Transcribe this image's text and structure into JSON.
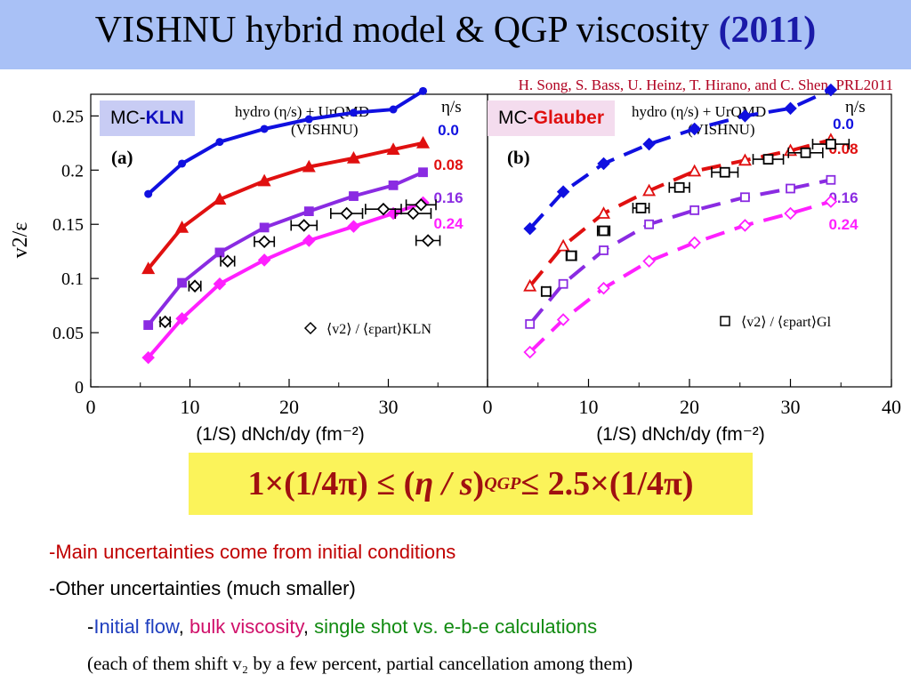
{
  "slide": {
    "title_text": "VISHNU hybrid model  &  QGP viscosity",
    "title_year": "(2011)",
    "citation": "H. Song, S. Bass, U. Heinz, T. Hirano, and  C. Shen, PRL2011",
    "badge_kln_prefix": "MC-",
    "badge_kln_name": "KLN",
    "badge_glauber_prefix": "MC-",
    "badge_glauber_name": "Glauber",
    "formula": {
      "left": "1×(1/4π) ≤ (",
      "eta_s": "η / s",
      "close": ")",
      "sub": "QGP",
      "right": " ≤ 2.5×(1/4π)"
    },
    "bullet1": "-Main uncertainties come from initial conditions",
    "bullet2": "-Other uncertainties (much smaller)",
    "bullet3_dash": "-",
    "bullet3_a": "Initial flow",
    "bullet3_sep1": ", ",
    "bullet3_b": "bulk viscosity",
    "bullet3_sep2": ", ",
    "bullet3_c": "single shot vs. e-b-e calculations",
    "bullet4": "(each of them shift v₂ by a few percent,  partial cancellation among them)",
    "colors": {
      "blue": "#1010e0",
      "red": "#e01010",
      "purple": "#8a2be2",
      "magenta": "#ff20ff",
      "title_bg": "#a9c1f6",
      "formula_bg": "#fbf35a"
    }
  },
  "chart_data": [
    {
      "type": "line",
      "panel_label": "(a)",
      "header": "hydro (η/s) + UrQMD",
      "header2": "(VISHNU)",
      "legend_title": "η/s",
      "data_legend": "⟨v2⟩ / ⟨εpart⟩KLN",
      "xlabel": "(1/S) dNch/dy (fm⁻²)",
      "ylabel": "v2/ε",
      "xlim": [
        0,
        40
      ],
      "ylim": [
        0,
        0.27
      ],
      "xticks": [
        "0",
        "10",
        "20",
        "30"
      ],
      "yticks": [
        "0",
        "0.05",
        "0.1",
        "0.15",
        "0.2",
        "0.25"
      ],
      "series": [
        {
          "name": "0.0",
          "color": "#1010e0",
          "marker": "star",
          "dashed": false,
          "x": [
            5.8,
            9.2,
            13.0,
            17.5,
            22.0,
            26.5,
            30.5,
            33.5
          ],
          "y": [
            0.178,
            0.206,
            0.226,
            0.238,
            0.247,
            0.253,
            0.256,
            0.273
          ]
        },
        {
          "name": "0.08",
          "color": "#e01010",
          "marker": "triangle",
          "dashed": false,
          "x": [
            5.8,
            9.2,
            13.0,
            17.5,
            22.0,
            26.5,
            30.5,
            33.5
          ],
          "y": [
            0.109,
            0.147,
            0.173,
            0.19,
            0.203,
            0.211,
            0.219,
            0.225
          ]
        },
        {
          "name": "0.16",
          "color": "#8a2be2",
          "marker": "square",
          "dashed": false,
          "x": [
            5.8,
            9.2,
            13.0,
            17.5,
            22.0,
            26.5,
            30.5,
            33.5
          ],
          "y": [
            0.057,
            0.096,
            0.124,
            0.147,
            0.162,
            0.176,
            0.186,
            0.198
          ]
        },
        {
          "name": "0.24",
          "color": "#ff20ff",
          "marker": "diamond",
          "dashed": false,
          "x": [
            5.8,
            9.2,
            13.0,
            17.5,
            22.0,
            26.5,
            30.5,
            33.5
          ],
          "y": [
            0.027,
            0.063,
            0.095,
            0.117,
            0.135,
            0.148,
            0.16,
            0.17
          ]
        }
      ],
      "data_points": {
        "marker": "open-diamond",
        "x": [
          7.5,
          10.5,
          13.8,
          17.5,
          21.5,
          25.8,
          29.5,
          32.5,
          33.3,
          34.0
        ],
        "y": [
          0.06,
          0.093,
          0.116,
          0.134,
          0.149,
          0.16,
          0.164,
          0.16,
          0.168,
          0.135
        ],
        "xerr": [
          0.5,
          0.6,
          0.7,
          1.0,
          1.3,
          1.6,
          1.8,
          1.8,
          1.5,
          1.2
        ]
      }
    },
    {
      "type": "line",
      "panel_label": "(b)",
      "header": "hydro (η/s) + UrQMD",
      "header2": "(VISHNU)",
      "legend_title": "η/s",
      "data_legend": "⟨v2⟩ / ⟨εpart⟩Gl",
      "xlabel": "(1/S) dNch/dy (fm⁻²)",
      "xlim": [
        0,
        40
      ],
      "ylim": [
        0,
        0.27
      ],
      "xticks": [
        "0",
        "10",
        "20",
        "30",
        "40"
      ],
      "series": [
        {
          "name": "0.0",
          "color": "#1010e0",
          "marker": "diamond",
          "dashed": true,
          "x": [
            4.2,
            7.5,
            11.5,
            16.0,
            20.5,
            25.5,
            30.0,
            34.0
          ],
          "y": [
            0.146,
            0.18,
            0.206,
            0.224,
            0.238,
            0.25,
            0.257,
            0.274
          ]
        },
        {
          "name": "0.08",
          "color": "#e01010",
          "marker": "open-triangle",
          "dashed": true,
          "x": [
            4.2,
            7.5,
            11.5,
            16.0,
            20.5,
            25.5,
            30.0,
            34.0
          ],
          "y": [
            0.093,
            0.13,
            0.16,
            0.181,
            0.199,
            0.209,
            0.218,
            0.228
          ]
        },
        {
          "name": "0.16",
          "color": "#8a2be2",
          "marker": "open-square",
          "dashed": true,
          "x": [
            4.2,
            7.5,
            11.5,
            16.0,
            20.5,
            25.5,
            30.0,
            34.0
          ],
          "y": [
            0.058,
            0.095,
            0.126,
            0.15,
            0.163,
            0.175,
            0.183,
            0.191
          ]
        },
        {
          "name": "0.24",
          "color": "#ff20ff",
          "marker": "open-diamond",
          "dashed": true,
          "x": [
            4.2,
            7.5,
            11.5,
            16.0,
            20.5,
            25.5,
            30.0,
            34.0
          ],
          "y": [
            0.032,
            0.062,
            0.091,
            0.116,
            0.133,
            0.149,
            0.16,
            0.171
          ]
        }
      ],
      "data_points": {
        "marker": "open-square",
        "x": [
          5.8,
          8.3,
          11.5,
          15.2,
          19.0,
          23.5,
          27.8,
          31.5,
          34.0
        ],
        "y": [
          0.088,
          0.121,
          0.144,
          0.165,
          0.184,
          0.198,
          0.21,
          0.216,
          0.224
        ],
        "xerr": [
          0.4,
          0.5,
          0.6,
          0.8,
          1.0,
          1.3,
          1.5,
          1.7,
          1.8
        ]
      }
    }
  ]
}
